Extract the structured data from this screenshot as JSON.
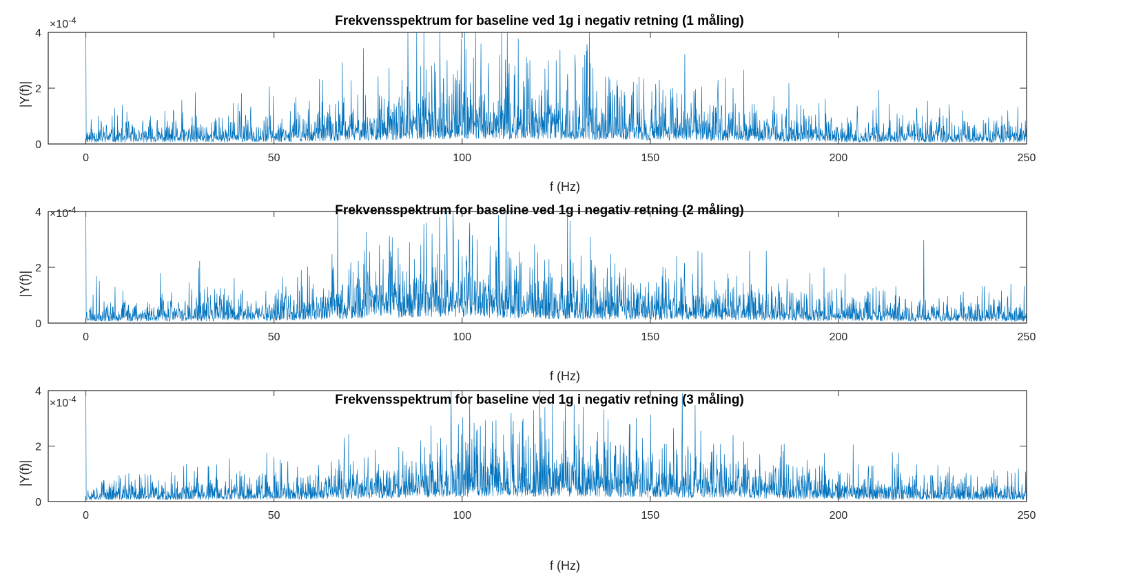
{
  "chart_data": [
    {
      "type": "line",
      "title": "Frekvensspektrum for baseline ved 1g i negativ retning (1 måling)",
      "xlabel": "f (Hz)",
      "ylabel": "|Y(f)|",
      "y_multiplier": {
        "base": "×10",
        "exponent": "-4"
      },
      "xlim": [
        -10,
        250
      ],
      "ylim": [
        0,
        4
      ],
      "xticks": [
        0,
        50,
        100,
        150,
        200,
        250
      ],
      "yticks": [
        0,
        2,
        4
      ],
      "xtick_labels": [
        "0",
        "50",
        "100",
        "150",
        "200",
        "250"
      ],
      "ytick_labels": [
        "0",
        "2",
        "4"
      ],
      "grid": false,
      "color": "#0072BD",
      "dc_spike": 4.0,
      "envelope": [
        [
          0,
          0.38
        ],
        [
          25,
          0.4
        ],
        [
          50,
          0.48
        ],
        [
          70,
          0.7
        ],
        [
          85,
          0.95
        ],
        [
          100,
          1.15
        ],
        [
          115,
          1.1
        ],
        [
          130,
          1.0
        ],
        [
          150,
          0.85
        ],
        [
          170,
          0.75
        ],
        [
          185,
          0.55
        ],
        [
          200,
          0.45
        ],
        [
          225,
          0.4
        ],
        [
          250,
          0.38
        ]
      ],
      "peaks": [
        [
          84,
          2.3
        ],
        [
          89,
          2.8
        ],
        [
          93,
          2.6
        ],
        [
          96,
          3.0
        ],
        [
          101,
          3.4
        ],
        [
          103,
          3.1
        ],
        [
          105,
          3.6
        ],
        [
          107,
          2.9
        ],
        [
          110,
          3.2
        ],
        [
          114,
          2.8
        ],
        [
          118,
          3.0
        ],
        [
          122,
          2.7
        ],
        [
          125,
          3.0
        ],
        [
          128,
          2.5
        ],
        [
          130,
          3.2
        ],
        [
          134,
          2.9
        ],
        [
          139,
          2.4
        ],
        [
          147,
          2.4
        ],
        [
          156,
          2.0
        ],
        [
          168,
          2.3
        ],
        [
          172,
          2.0
        ],
        [
          190,
          1.4
        ],
        [
          210,
          1.3
        ],
        [
          233,
          1.2
        ],
        [
          245,
          1.2
        ]
      ],
      "seed": 11
    },
    {
      "type": "line",
      "title": "Frekvensspektrum for baseline ved 1g i negativ retning (2 måling)",
      "xlabel": "f (Hz)",
      "ylabel": "|Y(f)|",
      "y_multiplier": {
        "base": "×10",
        "exponent": "-4"
      },
      "xlim": [
        -10,
        250
      ],
      "ylim": [
        0,
        4
      ],
      "xticks": [
        0,
        50,
        100,
        150,
        200,
        250
      ],
      "yticks": [
        0,
        2,
        4
      ],
      "xtick_labels": [
        "0",
        "50",
        "100",
        "150",
        "200",
        "250"
      ],
      "ytick_labels": [
        "0",
        "2",
        "4"
      ],
      "grid": false,
      "color": "#0072BD",
      "dc_spike": 4.0,
      "envelope": [
        [
          0,
          0.42
        ],
        [
          25,
          0.45
        ],
        [
          50,
          0.55
        ],
        [
          65,
          0.8
        ],
        [
          80,
          1.15
        ],
        [
          95,
          1.4
        ],
        [
          105,
          1.3
        ],
        [
          120,
          1.0
        ],
        [
          140,
          0.8
        ],
        [
          160,
          0.75
        ],
        [
          175,
          0.7
        ],
        [
          190,
          0.5
        ],
        [
          210,
          0.45
        ],
        [
          230,
          0.4
        ],
        [
          250,
          0.38
        ]
      ],
      "peaks": [
        [
          74,
          2.6
        ],
        [
          78,
          2.8
        ],
        [
          83,
          2.7
        ],
        [
          86,
          2.9
        ],
        [
          89,
          2.8
        ],
        [
          92,
          3.2
        ],
        [
          94,
          3.8
        ],
        [
          96,
          3.2
        ],
        [
          99,
          3.0
        ],
        [
          102,
          3.6
        ],
        [
          104,
          3.0
        ],
        [
          109,
          2.6
        ],
        [
          113,
          2.3
        ],
        [
          118,
          2.0
        ],
        [
          157,
          2.4
        ],
        [
          173,
          1.7
        ],
        [
          193,
          1.4
        ],
        [
          210,
          1.3
        ],
        [
          240,
          1.1
        ]
      ],
      "seed": 23
    },
    {
      "type": "line",
      "title": "Frekvensspektrum for baseline ved 1g i negativ retning (3 måling)",
      "xlabel": "f (Hz)",
      "ylabel": "|Y(f)|",
      "y_multiplier": {
        "base": "×10",
        "exponent": "-4"
      },
      "xlim": [
        -10,
        250
      ],
      "ylim": [
        0,
        4
      ],
      "xticks": [
        0,
        50,
        100,
        150,
        200,
        250
      ],
      "yticks": [
        0,
        2,
        4
      ],
      "xtick_labels": [
        "0",
        "50",
        "100",
        "150",
        "200",
        "250"
      ],
      "ytick_labels": [
        "0",
        "2",
        "4"
      ],
      "grid": false,
      "color": "#0072BD",
      "dc_spike": 4.0,
      "envelope": [
        [
          0,
          0.38
        ],
        [
          25,
          0.4
        ],
        [
          50,
          0.45
        ],
        [
          70,
          0.6
        ],
        [
          90,
          0.9
        ],
        [
          110,
          1.15
        ],
        [
          125,
          1.15
        ],
        [
          140,
          1.0
        ],
        [
          160,
          0.9
        ],
        [
          172,
          0.85
        ],
        [
          180,
          0.65
        ],
        [
          200,
          0.5
        ],
        [
          225,
          0.42
        ],
        [
          250,
          0.38
        ]
      ],
      "peaks": [
        [
          50,
          1.6
        ],
        [
          75,
          1.6
        ],
        [
          89,
          2.2
        ],
        [
          97,
          2.4
        ],
        [
          102,
          3.8
        ],
        [
          108,
          2.9
        ],
        [
          113,
          3.2
        ],
        [
          116,
          2.9
        ],
        [
          119,
          3.3
        ],
        [
          122,
          3.4
        ],
        [
          124,
          3.5
        ],
        [
          127,
          2.9
        ],
        [
          131,
          2.8
        ],
        [
          136,
          2.5
        ],
        [
          143,
          2.0
        ],
        [
          160,
          2.0
        ],
        [
          172,
          2.4
        ],
        [
          195,
          1.3
        ],
        [
          215,
          1.2
        ],
        [
          245,
          1.1
        ]
      ],
      "seed": 37
    }
  ]
}
